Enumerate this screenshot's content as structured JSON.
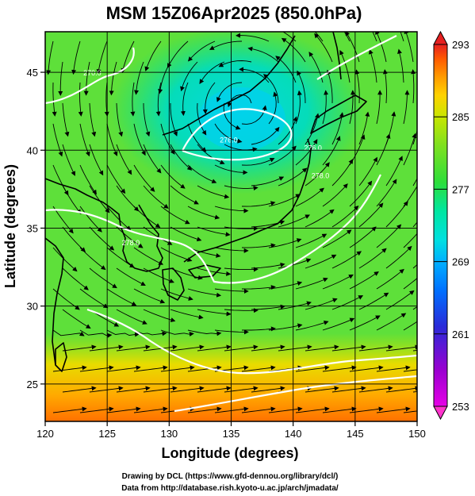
{
  "title": "MSM 15Z06Apr2025 (850.0hPa)",
  "xlabel": "Longitude (degrees)",
  "ylabel": "Latitude  (degrees)",
  "credits": {
    "line1": "Drawing by DCL (https://www.gfd-dennou.org/library/dcl/)",
    "line2": "Data from http://database.rish.kyoto-u.ac.jp/arch/jmadata/"
  },
  "map": {
    "lon_range": [
      120,
      150
    ],
    "lat_range": [
      22.6,
      47.6
    ],
    "lon_ticks": [
      "120",
      "125",
      "130",
      "135",
      "140",
      "145",
      "150"
    ],
    "lat_ticks": [
      "25",
      "30",
      "35",
      "40",
      "45"
    ],
    "field": "temperature (K) with wind streamlines",
    "cold_center": {
      "lon": 136.0,
      "lat": 42.8
    },
    "contour_labels": [
      {
        "text": "270.0",
        "lon": 123.8,
        "lat": 44.8
      },
      {
        "text": "276.0",
        "lon": 134.8,
        "lat": 40.5
      },
      {
        "text": "276.0",
        "lon": 141.6,
        "lat": 40.0
      },
      {
        "text": "278.0",
        "lon": 126.9,
        "lat": 33.9
      },
      {
        "text": "278.0",
        "lon": 142.2,
        "lat": 38.2
      }
    ]
  },
  "colorbar": {
    "ticks": [
      "293",
      "285",
      "277",
      "269",
      "261",
      "253"
    ],
    "min": 253,
    "max": 293,
    "colors": [
      "#e600e6",
      "#9a00d0",
      "#2a2ad8",
      "#0070ff",
      "#00b0ff",
      "#00e0e0",
      "#00e6a0",
      "#2ede3a",
      "#7ee020",
      "#c8e600",
      "#ffd200",
      "#ff9c00",
      "#ff5a00",
      "#e62020"
    ]
  }
}
